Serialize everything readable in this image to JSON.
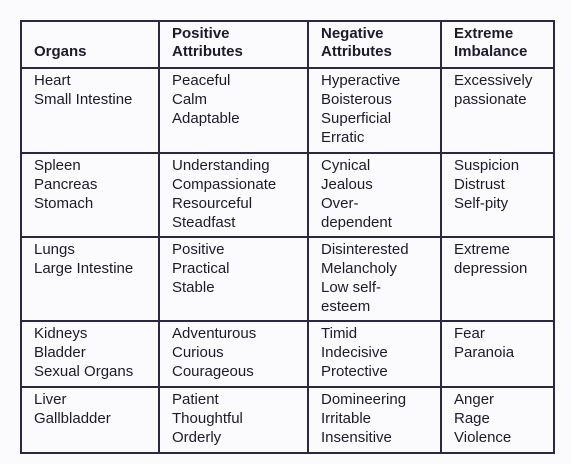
{
  "table": {
    "header": [
      [
        "Organs"
      ],
      [
        "Positive",
        "Attributes"
      ],
      [
        "Negative",
        "Attributes"
      ],
      [
        "Extreme",
        "Imbalance"
      ]
    ],
    "rows": [
      [
        [
          "Heart",
          "Small Intestine"
        ],
        [
          "Peaceful",
          "Calm",
          "Adaptable"
        ],
        [
          "Hyperactive",
          "Boisterous",
          "Superficial",
          "Erratic"
        ],
        [
          "Excessively",
          "passionate"
        ]
      ],
      [
        [
          "Spleen",
          "Pancreas",
          "Stomach"
        ],
        [
          "Understanding",
          "Compassionate",
          "Resourceful",
          "Steadfast"
        ],
        [
          "Cynical",
          "Jealous",
          "Over-",
          "dependent"
        ],
        [
          "Suspicion",
          "Distrust",
          "Self-pity"
        ]
      ],
      [
        [
          "Lungs",
          "Large Intestine"
        ],
        [
          "Positive",
          "Practical",
          "Stable"
        ],
        [
          "Disinterested",
          "Melancholy",
          "Low self-",
          "esteem"
        ],
        [
          "Extreme",
          "depression"
        ]
      ],
      [
        [
          "Kidneys",
          "Bladder",
          "Sexual Organs"
        ],
        [
          "Adventurous",
          "Curious",
          "Courageous"
        ],
        [
          "Timid",
          "Indecisive",
          "Protective"
        ],
        [
          "Fear",
          "Paranoia"
        ]
      ],
      [
        [
          "Liver",
          "Gallbladder"
        ],
        [
          "Patient",
          "Thoughtful",
          "Orderly"
        ],
        [
          "Domineering",
          "Irritable",
          "Insensitive"
        ],
        [
          "Anger",
          "Rage",
          "Violence"
        ]
      ]
    ]
  }
}
